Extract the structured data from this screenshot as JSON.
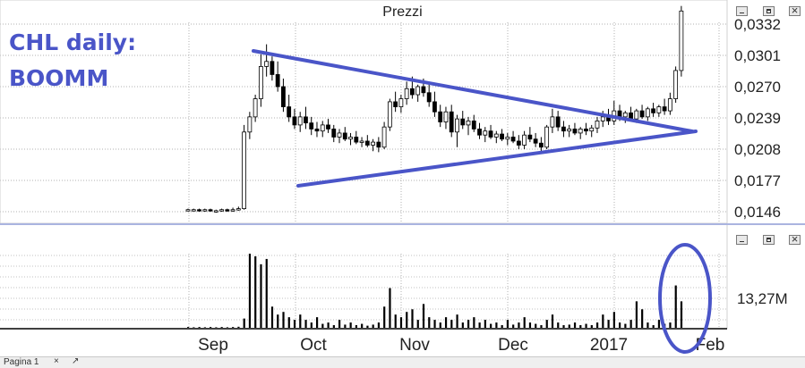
{
  "panel": {
    "title": "Prezzi"
  },
  "annotation": {
    "line1": "CHL daily:",
    "line2": "BOOMM"
  },
  "colors": {
    "line": "#4a55c8",
    "candle": "#000000",
    "grid": "#b0b0b0",
    "separator": "#aab4e0"
  },
  "window_buttons": [
    "minimize",
    "maximize",
    "close"
  ],
  "tabbar": {
    "tab_label": "Pagina 1",
    "close_glyph": "×",
    "new_tab_glyph": "↗"
  },
  "chart_data": [
    {
      "type": "candlestick",
      "title": "Prezzi",
      "y_ticks": [
        "0,0332",
        "0,0301",
        "0,0270",
        "0,0239",
        "0,0208",
        "0,0177",
        "0,0146"
      ],
      "y_tick_values": [
        0.0332,
        0.0301,
        0.027,
        0.0239,
        0.0208,
        0.0177,
        0.0146
      ],
      "ylim": [
        0.0136,
        0.0355
      ],
      "x_ticks": [
        "Sep",
        "Oct",
        "Nov",
        "Dec",
        "2017",
        "Feb"
      ],
      "candles": [
        [
          0.0148,
          0.0149,
          0.0147,
          0.0148
        ],
        [
          0.0148,
          0.0149,
          0.0147,
          0.0148
        ],
        [
          0.0148,
          0.0149,
          0.0146,
          0.0147
        ],
        [
          0.0147,
          0.0149,
          0.0146,
          0.0148
        ],
        [
          0.0148,
          0.0149,
          0.0146,
          0.0147
        ],
        [
          0.0147,
          0.0148,
          0.0145,
          0.0147
        ],
        [
          0.0147,
          0.0149,
          0.0146,
          0.0148
        ],
        [
          0.0148,
          0.0149,
          0.0146,
          0.0147
        ],
        [
          0.0147,
          0.015,
          0.0146,
          0.0148
        ],
        [
          0.0148,
          0.0151,
          0.0147,
          0.0149
        ],
        [
          0.0149,
          0.0232,
          0.0148,
          0.0225
        ],
        [
          0.0225,
          0.0245,
          0.0218,
          0.024
        ],
        [
          0.024,
          0.0262,
          0.0235,
          0.0258
        ],
        [
          0.0258,
          0.0302,
          0.025,
          0.029
        ],
        [
          0.029,
          0.0312,
          0.028,
          0.0295
        ],
        [
          0.0295,
          0.03,
          0.0276,
          0.0282
        ],
        [
          0.0282,
          0.0295,
          0.0265,
          0.027
        ],
        [
          0.027,
          0.0278,
          0.0245,
          0.025
        ],
        [
          0.025,
          0.0262,
          0.0235,
          0.024
        ],
        [
          0.024,
          0.0248,
          0.0228,
          0.0232
        ],
        [
          0.0232,
          0.0245,
          0.0225,
          0.024
        ],
        [
          0.024,
          0.025,
          0.0228,
          0.0234
        ],
        [
          0.0234,
          0.024,
          0.0222,
          0.0228
        ],
        [
          0.0228,
          0.0235,
          0.022,
          0.0226
        ],
        [
          0.0226,
          0.0236,
          0.022,
          0.0232
        ],
        [
          0.0232,
          0.0238,
          0.0224,
          0.0228
        ],
        [
          0.0228,
          0.0232,
          0.0215,
          0.022
        ],
        [
          0.022,
          0.0228,
          0.0214,
          0.0224
        ],
        [
          0.0224,
          0.023,
          0.0216,
          0.0218
        ],
        [
          0.0218,
          0.0224,
          0.0212,
          0.022
        ],
        [
          0.022,
          0.0226,
          0.0213,
          0.0215
        ],
        [
          0.0215,
          0.022,
          0.021,
          0.0216
        ],
        [
          0.0216,
          0.0222,
          0.021,
          0.0212
        ],
        [
          0.0212,
          0.0218,
          0.0206,
          0.0215
        ],
        [
          0.0215,
          0.022,
          0.0205,
          0.021
        ],
        [
          0.021,
          0.0235,
          0.0208,
          0.023
        ],
        [
          0.023,
          0.0258,
          0.0226,
          0.0255
        ],
        [
          0.0255,
          0.0265,
          0.0245,
          0.025
        ],
        [
          0.025,
          0.0262,
          0.0244,
          0.0258
        ],
        [
          0.0258,
          0.0275,
          0.0252,
          0.0268
        ],
        [
          0.0268,
          0.028,
          0.0258,
          0.0262
        ],
        [
          0.0262,
          0.0272,
          0.0255,
          0.027
        ],
        [
          0.027,
          0.0278,
          0.026,
          0.0264
        ],
        [
          0.0264,
          0.0272,
          0.025,
          0.0255
        ],
        [
          0.0255,
          0.0265,
          0.024,
          0.0245
        ],
        [
          0.0245,
          0.0252,
          0.023,
          0.0235
        ],
        [
          0.0235,
          0.025,
          0.0228,
          0.0245
        ],
        [
          0.0245,
          0.0252,
          0.022,
          0.0225
        ],
        [
          0.0225,
          0.0242,
          0.021,
          0.0238
        ],
        [
          0.0238,
          0.0246,
          0.0228,
          0.0232
        ],
        [
          0.0232,
          0.024,
          0.0222,
          0.0236
        ],
        [
          0.0236,
          0.0242,
          0.0225,
          0.0228
        ],
        [
          0.0228,
          0.0234,
          0.0218,
          0.0222
        ],
        [
          0.0222,
          0.023,
          0.0215,
          0.0226
        ],
        [
          0.0226,
          0.0232,
          0.0218,
          0.022
        ],
        [
          0.022,
          0.0226,
          0.0214,
          0.0223
        ],
        [
          0.0223,
          0.0228,
          0.0216,
          0.0218
        ],
        [
          0.0218,
          0.0224,
          0.0212,
          0.022
        ],
        [
          0.022,
          0.0226,
          0.0214,
          0.0216
        ],
        [
          0.0216,
          0.0222,
          0.0208,
          0.0212
        ],
        [
          0.0212,
          0.0226,
          0.0208,
          0.0222
        ],
        [
          0.0222,
          0.023,
          0.0215,
          0.0218
        ],
        [
          0.0218,
          0.0224,
          0.021,
          0.0214
        ],
        [
          0.0214,
          0.022,
          0.0206,
          0.021
        ],
        [
          0.021,
          0.0232,
          0.0208,
          0.023
        ],
        [
          0.023,
          0.0248,
          0.0224,
          0.024
        ],
        [
          0.024,
          0.0246,
          0.0226,
          0.023
        ],
        [
          0.023,
          0.0236,
          0.022,
          0.0226
        ],
        [
          0.0226,
          0.0232,
          0.022,
          0.0228
        ],
        [
          0.0228,
          0.0234,
          0.0222,
          0.0224
        ],
        [
          0.0224,
          0.023,
          0.0218,
          0.0228
        ],
        [
          0.0228,
          0.0234,
          0.0222,
          0.0226
        ],
        [
          0.0226,
          0.0232,
          0.022,
          0.0229
        ],
        [
          0.0229,
          0.024,
          0.0224,
          0.0236
        ],
        [
          0.0236,
          0.0246,
          0.023,
          0.024
        ],
        [
          0.024,
          0.0248,
          0.0232,
          0.0236
        ],
        [
          0.0236,
          0.0256,
          0.0232,
          0.0246
        ],
        [
          0.0246,
          0.0252,
          0.0236,
          0.024
        ],
        [
          0.024,
          0.0246,
          0.0234,
          0.0244
        ],
        [
          0.0244,
          0.025,
          0.0236,
          0.0238
        ],
        [
          0.0238,
          0.0248,
          0.0234,
          0.0246
        ],
        [
          0.0246,
          0.0252,
          0.0238,
          0.024
        ],
        [
          0.024,
          0.025,
          0.0236,
          0.0248
        ],
        [
          0.0248,
          0.0254,
          0.024,
          0.0244
        ],
        [
          0.0244,
          0.0252,
          0.024,
          0.025
        ],
        [
          0.025,
          0.0258,
          0.0242,
          0.0246
        ],
        [
          0.0246,
          0.0264,
          0.0242,
          0.0258
        ],
        [
          0.0258,
          0.029,
          0.0254,
          0.0286
        ],
        [
          0.0286,
          0.035,
          0.028,
          0.0345
        ]
      ]
    },
    {
      "type": "bar",
      "title": "",
      "y_tick": "13,27M",
      "y_tick_value": 13.27,
      "ylim": [
        0,
        30
      ],
      "values": [
        0.3,
        0.2,
        0.3,
        0.2,
        0.3,
        0.2,
        0.3,
        0.2,
        0.3,
        0.4,
        3.5,
        28,
        27,
        24,
        26,
        8,
        5,
        6,
        4,
        3,
        5,
        3,
        2,
        4,
        1.5,
        2,
        1,
        3,
        1.2,
        2,
        1,
        1.5,
        0.8,
        1.2,
        2,
        8,
        15,
        5,
        4,
        6,
        7,
        3,
        9,
        4,
        3,
        2,
        4,
        3,
        5,
        2,
        3,
        4,
        2,
        3,
        1.5,
        2,
        1,
        3,
        1.2,
        2,
        4,
        2,
        1.5,
        1,
        3,
        5,
        2,
        1,
        1.2,
        2,
        1,
        1.5,
        1,
        2,
        5,
        3,
        6,
        2,
        1.5,
        3,
        10,
        7,
        2,
        1,
        3,
        1.5,
        2,
        16,
        10
      ]
    }
  ]
}
